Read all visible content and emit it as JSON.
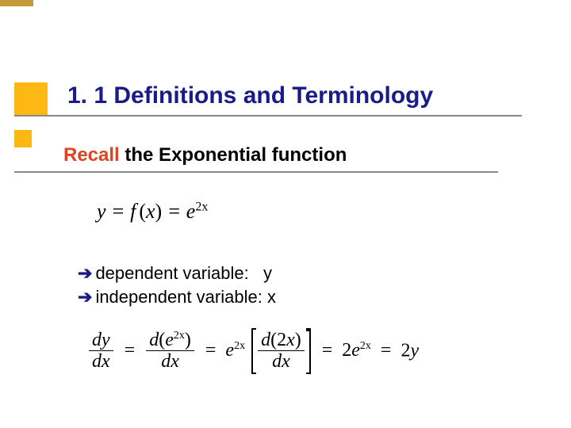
{
  "colors": {
    "accent": "#fdb813",
    "accent_dark": "#c49a3a",
    "title": "#1a1a8a",
    "recall": "#d42",
    "rule": "#888888",
    "text": "#000000",
    "background": "#ffffff"
  },
  "typography": {
    "title_fontsize": 30,
    "subtitle_fontsize": 24,
    "body_fontsize": 22,
    "math_fontsize": 26,
    "math_font": "Times New Roman",
    "ui_font": "Verdana"
  },
  "title": "1. 1 Definitions and Terminology",
  "subtitle": {
    "recall": "Recall",
    "rest": " the Exponential function"
  },
  "equation1": {
    "lhs_y": "y",
    "eq": " = ",
    "f": "f",
    "x": "x",
    "rhs_e": "e",
    "exp": "2x"
  },
  "bullets": {
    "arrow": "➔",
    "line1_label": "dependent variable:",
    "line1_var": "y",
    "line2_label": "independent variable:",
    "line2_var": "x"
  },
  "equation2": {
    "dy": "dy",
    "dx": "dx",
    "d": "d",
    "e": "e",
    "twox": "2x",
    "two": "2",
    "y": "y",
    "eq": "="
  }
}
